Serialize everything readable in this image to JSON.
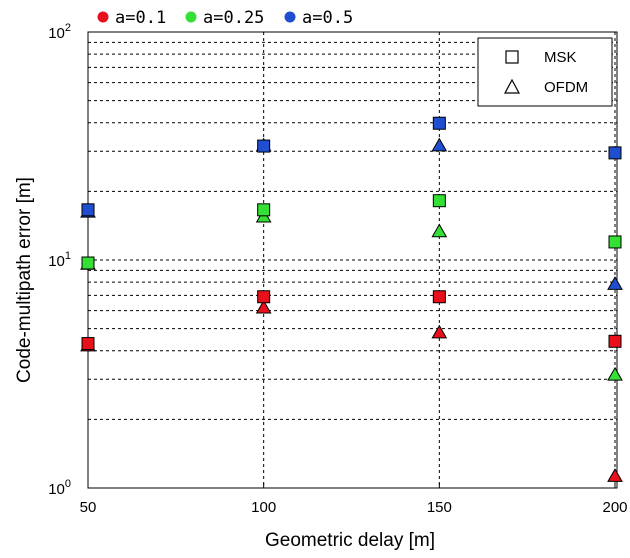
{
  "chart_data": {
    "type": "scatter",
    "xlabel": "Geometric delay [m]",
    "ylabel": "Code-multipath error [m]",
    "x_ticks": [
      "50",
      "100",
      "150",
      "200"
    ],
    "y_ticks": [
      {
        "base": "10",
        "exp": "0"
      },
      {
        "base": "10",
        "exp": "1"
      },
      {
        "base": "10",
        "exp": "2"
      }
    ],
    "x_range": [
      50,
      200
    ],
    "y_range": [
      1,
      100
    ],
    "y_scale": "log",
    "grid": true,
    "legend_markers": {
      "placement": "top-right",
      "entries": [
        {
          "label": "MSK",
          "marker": "square"
        },
        {
          "label": "OFDM",
          "marker": "triangle"
        }
      ]
    },
    "legend_colors": {
      "placement": "top-left-outside",
      "entries": [
        {
          "label": "a=0.1",
          "color": "#e8101a"
        },
        {
          "label": "a=0.25",
          "color": "#33e033"
        },
        {
          "label": "a=0.5",
          "color": "#1f4fd0"
        }
      ]
    },
    "series": [
      {
        "alpha": "a=0.1",
        "modulation": "MSK",
        "marker": "square",
        "color": "#e8101a",
        "x": [
          50,
          100,
          150,
          200
        ],
        "y": [
          4.3,
          6.9,
          6.9,
          4.4
        ]
      },
      {
        "alpha": "a=0.1",
        "modulation": "OFDM",
        "marker": "triangle",
        "color": "#e8101a",
        "x": [
          50,
          100,
          150,
          200
        ],
        "y": [
          4.3,
          6.3,
          4.9,
          1.15
        ]
      },
      {
        "alpha": "a=0.25",
        "modulation": "MSK",
        "marker": "square",
        "color": "#33e033",
        "x": [
          50,
          100,
          150,
          200
        ],
        "y": [
          9.7,
          16.6,
          18.2,
          12.0
        ]
      },
      {
        "alpha": "a=0.25",
        "modulation": "OFDM",
        "marker": "triangle",
        "color": "#33e033",
        "x": [
          50,
          100,
          150,
          200
        ],
        "y": [
          9.8,
          15.8,
          13.6,
          3.2
        ]
      },
      {
        "alpha": "a=0.5",
        "modulation": "MSK",
        "marker": "square",
        "color": "#1f4fd0",
        "x": [
          50,
          100,
          150,
          200
        ],
        "y": [
          16.6,
          31.6,
          39.8,
          29.5
        ]
      },
      {
        "alpha": "a=0.5",
        "modulation": "OFDM",
        "marker": "triangle",
        "color": "#1f4fd0",
        "x": [
          50,
          100,
          150,
          200
        ],
        "y": [
          16.6,
          32.4,
          32.4,
          8.0
        ]
      }
    ]
  }
}
